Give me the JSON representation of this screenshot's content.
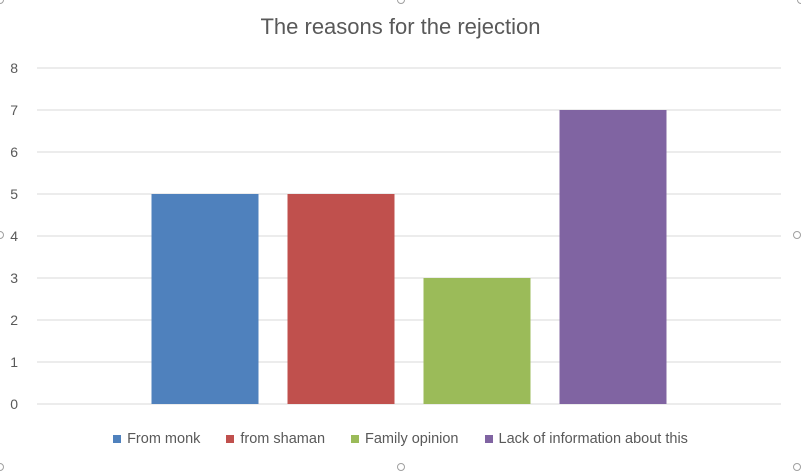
{
  "chart_data": {
    "type": "bar",
    "title": "The reasons for the rejection",
    "xlabel": "",
    "ylabel": "",
    "ylim": [
      0,
      8
    ],
    "yticks": [
      0,
      1,
      2,
      3,
      4,
      5,
      6,
      7,
      8
    ],
    "grid": true,
    "legend_position": "bottom",
    "series": [
      {
        "name": "From monk",
        "values": [
          5
        ],
        "color": "#4f81bd"
      },
      {
        "name": "from shaman",
        "values": [
          5
        ],
        "color": "#c0504d"
      },
      {
        "name": "Family opinion",
        "values": [
          3
        ],
        "color": "#9bbb59"
      },
      {
        "name": "Lack of information about this",
        "values": [
          7
        ],
        "color": "#8064a2"
      }
    ]
  }
}
